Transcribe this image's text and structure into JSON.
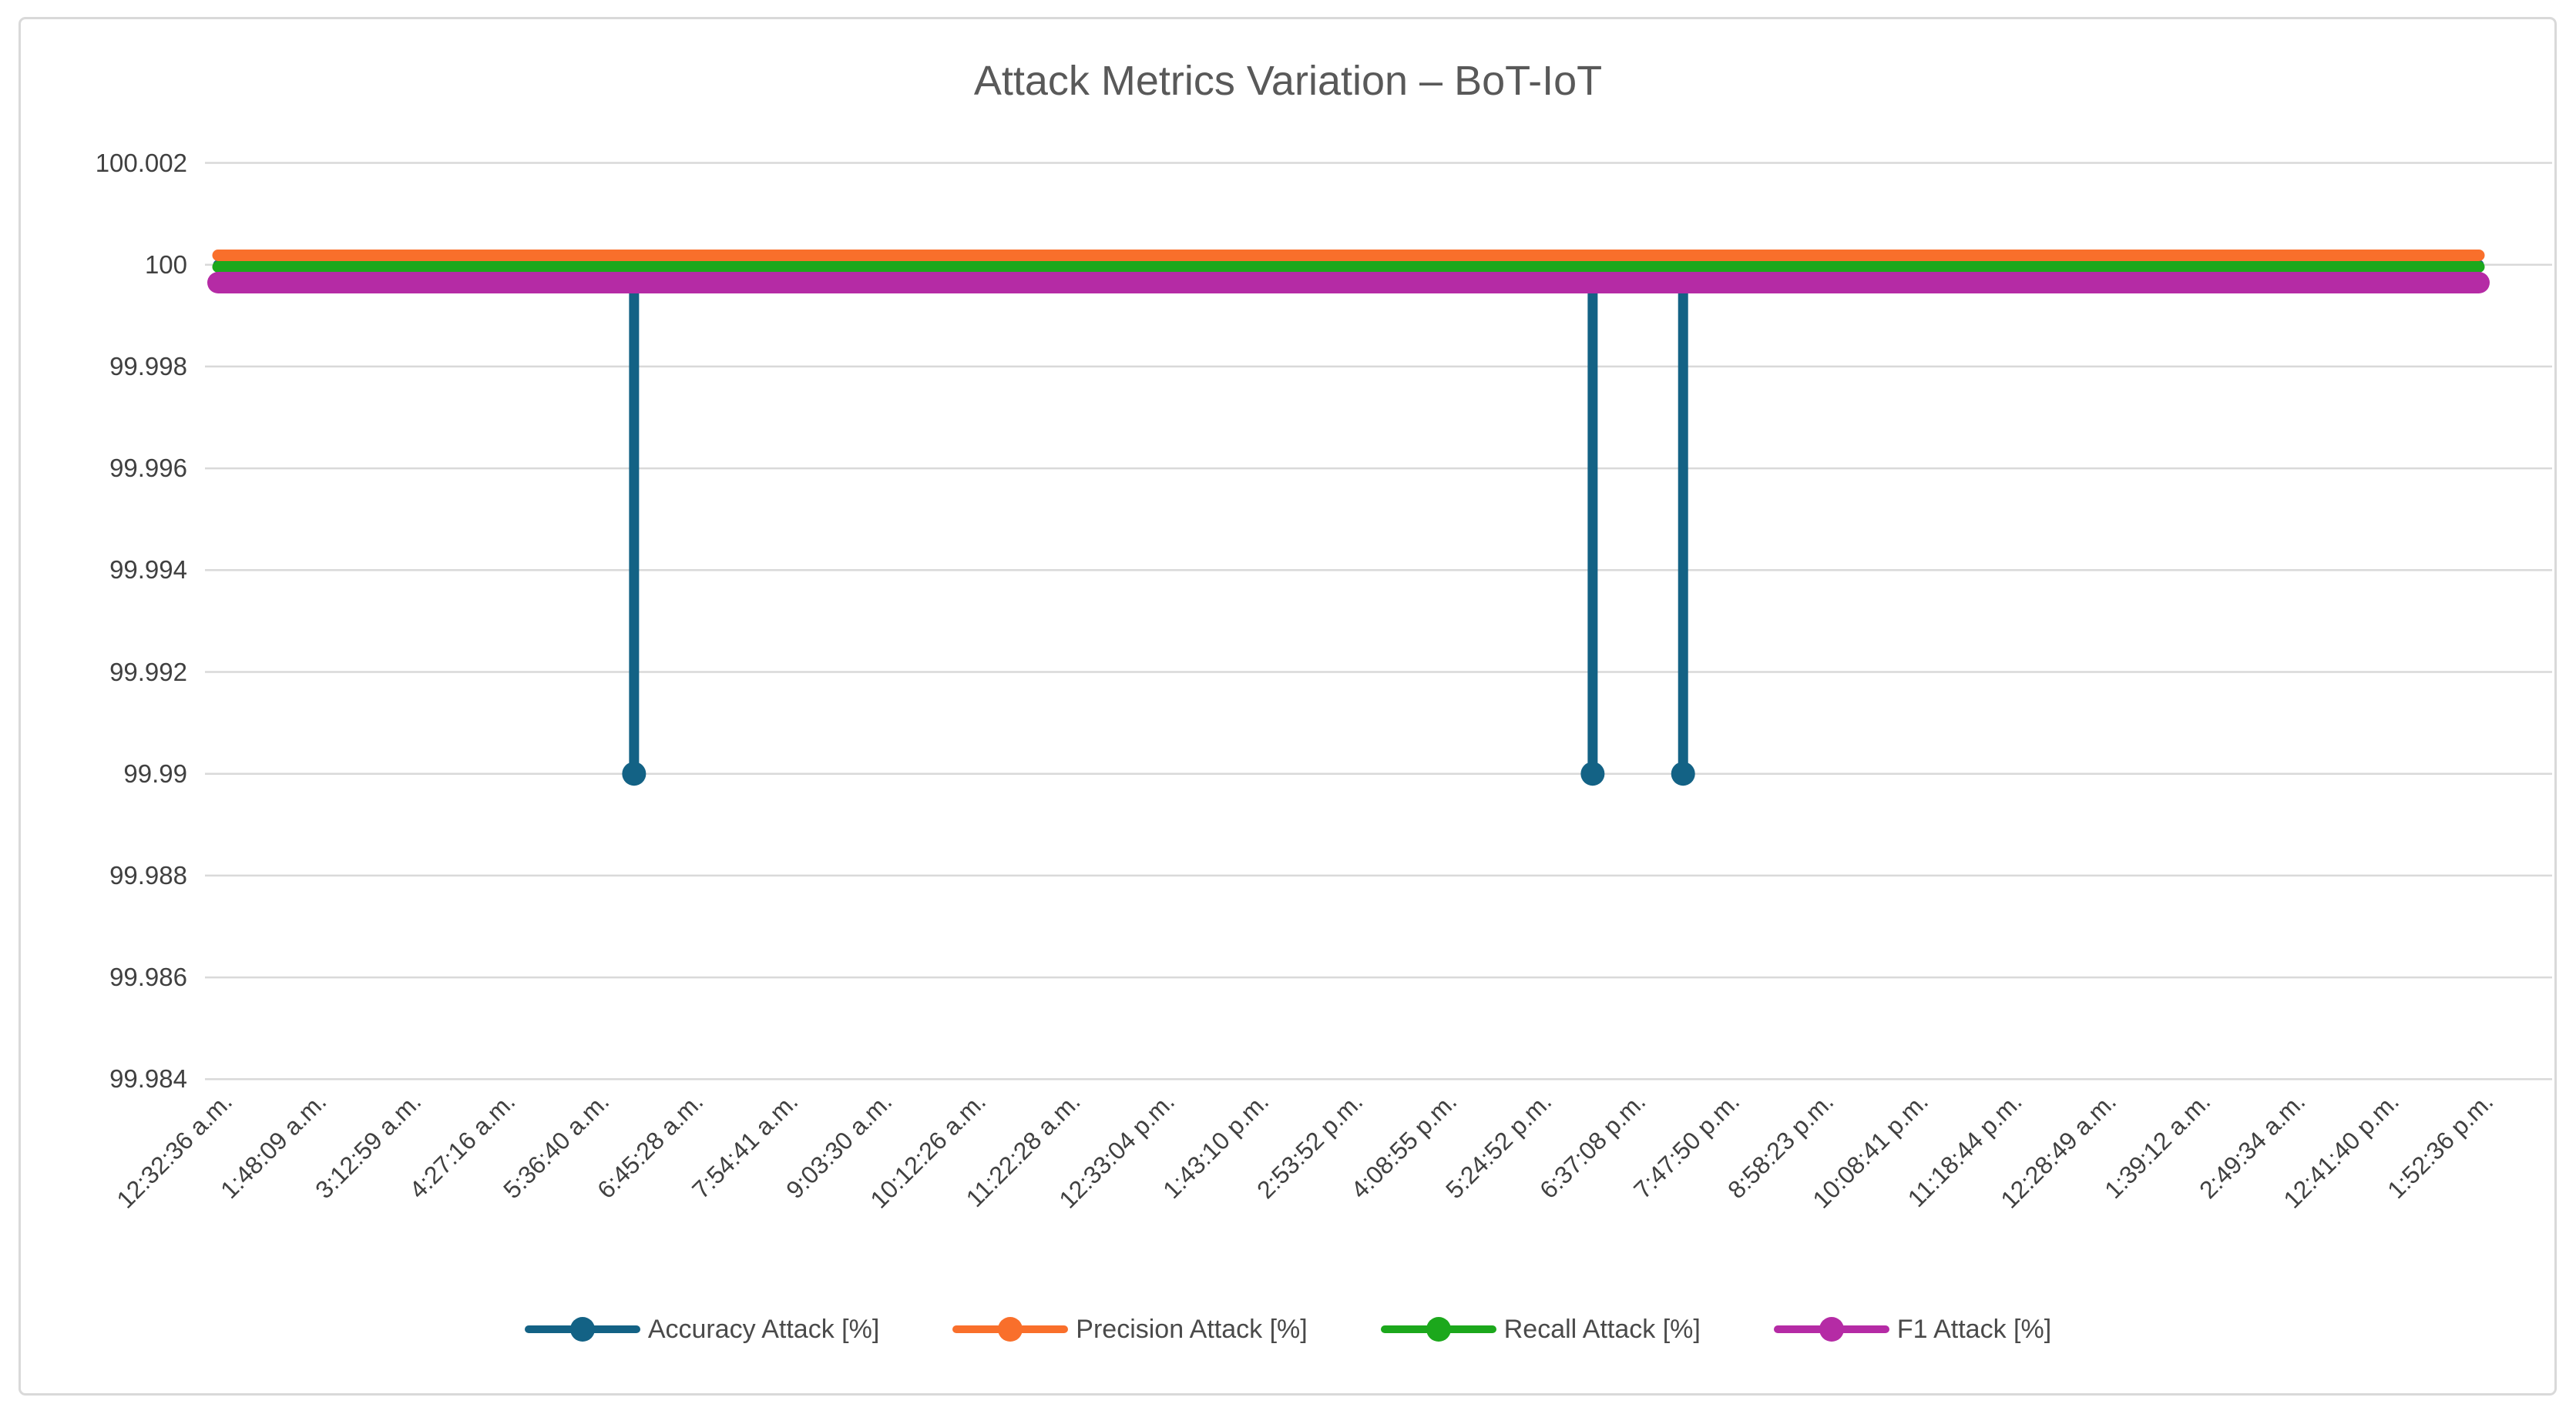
{
  "title": "Attack Metrics Variation – BoT-IoT",
  "colors": {
    "accuracy": "#136285",
    "precision": "#F96F2B",
    "recall": "#1CA81C",
    "f1": "#B52BA5",
    "gridline": "#D9D9D9",
    "frame_border": "#D9D9D9",
    "axis_text": "#404040",
    "title_text": "#595959"
  },
  "chart_data": {
    "type": "line",
    "title": "Attack Metrics Variation – BoT-IoT",
    "xlabel": "",
    "ylabel": "",
    "ylim": [
      99.983,
      100.003
    ],
    "grid": "horizontal",
    "legend_position": "bottom",
    "y_tick_labels": [
      "100.002",
      "100",
      "99.998",
      "99.996",
      "99.994",
      "99.992",
      "99.99",
      "99.988",
      "99.986",
      "99.984"
    ],
    "y_tick_values": [
      100.002,
      100,
      99.998,
      99.996,
      99.994,
      99.992,
      99.99,
      99.988,
      99.986,
      99.984
    ],
    "x_tick_labels": [
      "12:32:36 a.m.",
      "1:48:09 a.m.",
      "3:12:59 a.m.",
      "4:27:16 a.m.",
      "5:36:40 a.m.",
      "6:45:28 a.m.",
      "7:54:41 a.m.",
      "9:03:30 a.m.",
      "10:12:26 a.m.",
      "11:22:28 a.m.",
      "12:33:04 p.m.",
      "1:43:10 p.m.",
      "2:53:52 p.m.",
      "4:08:55 p.m.",
      "5:24:52 p.m.",
      "6:37:08 p.m.",
      "7:47:50 p.m.",
      "8:58:23 p.m.",
      "10:08:41 p.m.",
      "11:18:44 p.m.",
      "12:28:49 a.m.",
      "1:39:12 a.m.",
      "2:49:34 a.m.",
      "12:41:40 p.m.",
      "1:52:36 p.m."
    ],
    "series": [
      {
        "name": "Accuracy Attack [%]",
        "color": "#136285",
        "baseline_value": 100,
        "dips": [
          {
            "x_frac": 0.184,
            "value": 99.99
          },
          {
            "x_frac": 0.608,
            "value": 99.99
          },
          {
            "x_frac": 0.648,
            "value": 99.99
          }
        ]
      },
      {
        "name": "Precision Attack [%]",
        "color": "#F96F2B",
        "baseline_value": 100,
        "dips": []
      },
      {
        "name": "Recall Attack [%]",
        "color": "#1CA81C",
        "baseline_value": 100,
        "dips": []
      },
      {
        "name": "F1 Attack [%]",
        "color": "#B52BA5",
        "baseline_value": 100,
        "dips": []
      }
    ]
  }
}
